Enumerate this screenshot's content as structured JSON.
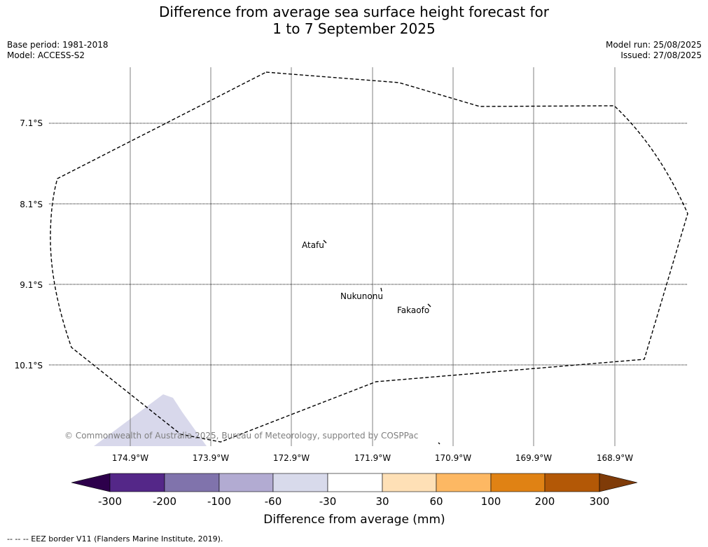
{
  "title": {
    "line1": "Difference from average sea surface height forecast for",
    "line2": "1 to 7 September 2025"
  },
  "meta_left": {
    "base_period": "Base period: 1981-2018",
    "model": "Model: ACCESS-S2"
  },
  "meta_right": {
    "model_run": "Model run: 25/08/2025",
    "issued": "Issued: 27/08/2025"
  },
  "map": {
    "lat_labels": [
      "7.1°S",
      "8.1°S",
      "9.1°S",
      "10.1°S"
    ],
    "lon_labels": [
      "174.9°W",
      "173.9°W",
      "172.9°W",
      "171.9°W",
      "170.9°W",
      "169.9°W",
      "168.9°W"
    ],
    "places": [
      "Atafu",
      "Nukunonu",
      "Fakaofo"
    ],
    "copyright": "© Commonwealth of Australia 2025, Bureau of Meteorology, supported by COSPPac",
    "colors": {
      "eez_border": "#000000",
      "anomaly_patch": "#d8d8eb"
    }
  },
  "colorbar": {
    "label": "Difference from average (mm)",
    "ticks": [
      "-300",
      "-200",
      "-100",
      "-60",
      "-30",
      "30",
      "60",
      "100",
      "200",
      "300"
    ],
    "colors": [
      "#2d004b",
      "#542788",
      "#8073ac",
      "#b2abd2",
      "#d8daeb",
      "#ffffff",
      "#fee0b6",
      "#fdb863",
      "#e08214",
      "#b35806",
      "#7f3b08"
    ]
  },
  "footer": "--  --  -- EEZ border V11 (Flanders Marine Institute, 2019)."
}
